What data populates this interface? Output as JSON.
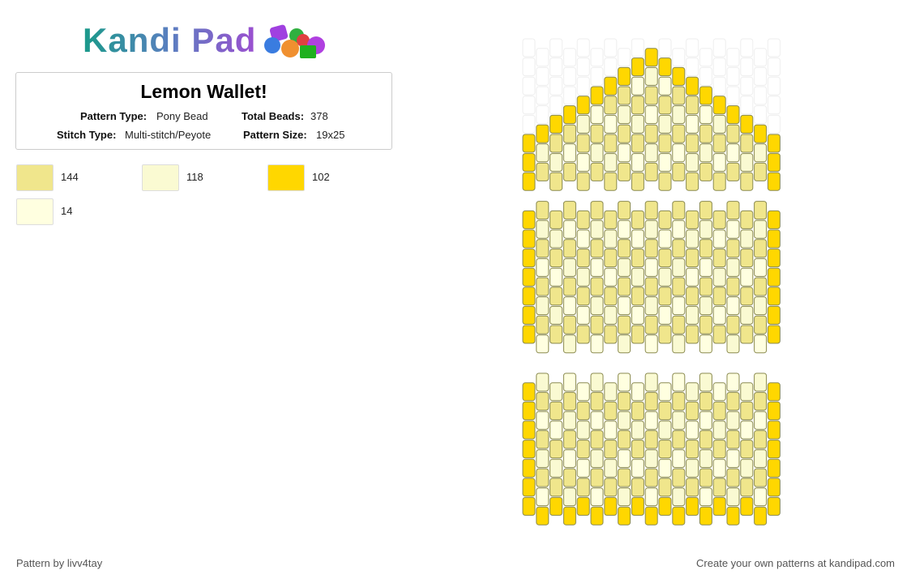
{
  "header": {
    "logo": "Kandi Pad"
  },
  "pattern": {
    "title": "Lemon Wallet!",
    "details": [
      {
        "label": "Pattern Type:",
        "value": "Pony Bead"
      },
      {
        "label": "Total Beads:",
        "value": "378"
      },
      {
        "label": "Stitch Type:",
        "value": "Multi-stitch/Peyote"
      },
      {
        "label": "Pattern Size:",
        "value": "19x25"
      }
    ]
  },
  "colors": [
    {
      "color": "#f0e68c",
      "count": 144
    },
    {
      "color": "#fafad2",
      "count": 118
    },
    {
      "color": "#ffd700",
      "count": 102
    },
    {
      "color": "#ffffe0",
      "count": 14
    }
  ],
  "footer": {
    "author": "Pattern by livv4tay",
    "credit": "Create your own patterns at kandipad.com"
  }
}
